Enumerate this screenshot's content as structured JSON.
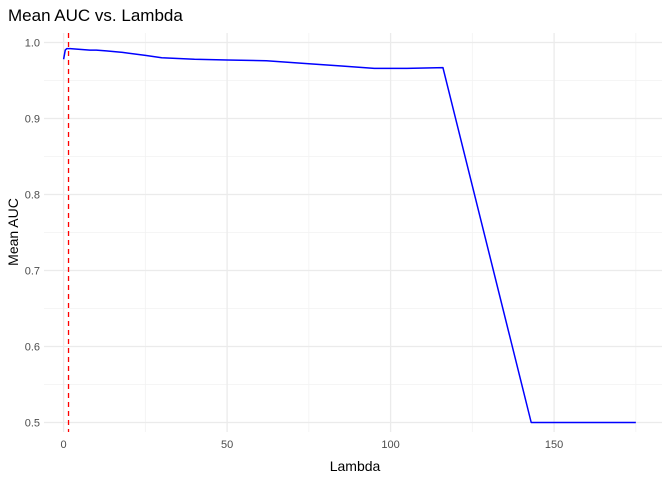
{
  "chart_data": {
    "type": "line",
    "title": "Mean AUC vs. Lambda",
    "xlabel": "Lambda",
    "ylabel": "Mean AUC",
    "xlim": [
      -6,
      183
    ],
    "ylim": [
      0.4875,
      1.0125
    ],
    "x_ticks": [
      0,
      50,
      100,
      150
    ],
    "x_tick_labels": [
      "0",
      "50",
      "100",
      "150"
    ],
    "x_minor_ticks": [
      25,
      75,
      125,
      175
    ],
    "y_ticks": [
      0.5,
      0.6,
      0.7,
      0.8,
      0.9,
      1.0
    ],
    "y_tick_labels": [
      "0.5",
      "0.6",
      "0.7",
      "0.8",
      "0.9",
      "1.0"
    ],
    "y_minor_ticks": [
      0.55,
      0.65,
      0.75,
      0.85,
      0.95
    ],
    "grid": true,
    "legend": "none",
    "series": [
      {
        "color": "#0000FF",
        "x": [
          0,
          0.5,
          1,
          2,
          5,
          8,
          10,
          13,
          18,
          25,
          30,
          40,
          50,
          62,
          75,
          85,
          95,
          105,
          116,
          143,
          150,
          160,
          175
        ],
        "y": [
          0.978,
          0.99,
          0.992,
          0.992,
          0.991,
          0.99,
          0.99,
          0.989,
          0.987,
          0.983,
          0.98,
          0.978,
          0.977,
          0.976,
          0.972,
          0.969,
          0.966,
          0.966,
          0.967,
          0.5,
          0.5,
          0.5,
          0.5
        ]
      }
    ],
    "vlines": [
      {
        "x": 1.5,
        "color": "#FF0000",
        "style": "dashed"
      }
    ]
  }
}
